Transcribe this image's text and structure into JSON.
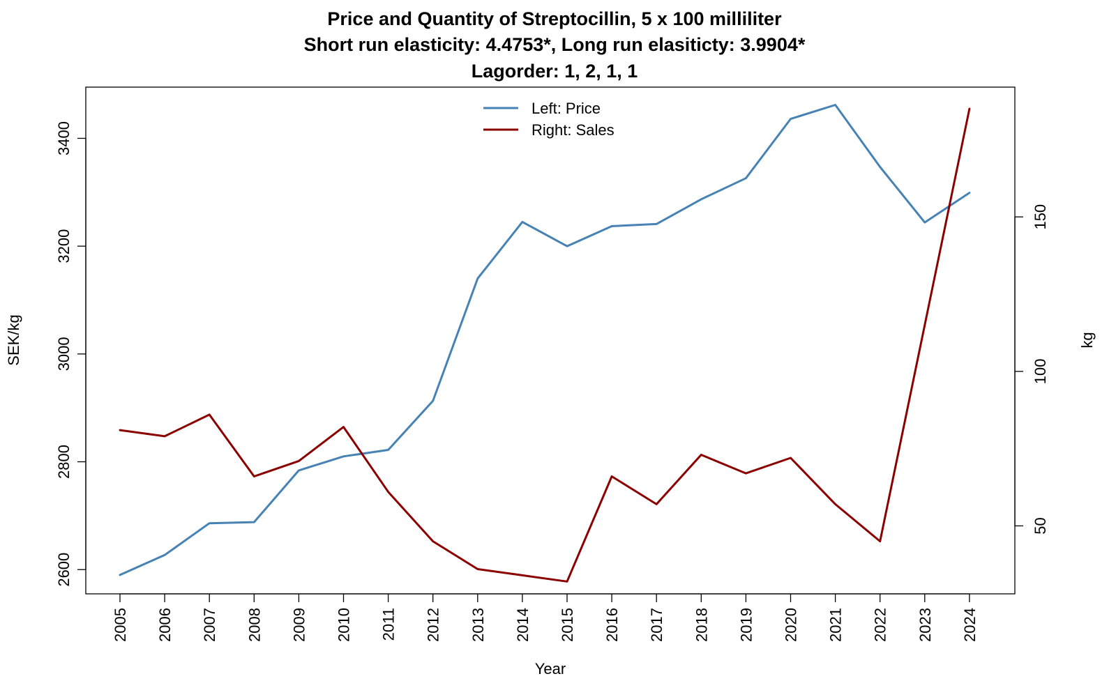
{
  "chart_data": {
    "type": "line",
    "title": "Price and Quantity of Streptocillin, 5 x 100 milliliter",
    "subtitle": "Short run elasticity: 4.4753*,   Long run elasiticty: 3.9904*",
    "subtitle2": "Lagorder: 1, 2, 1, 1",
    "xlabel": "Year",
    "ylabel_left": "SEK/kg",
    "ylabel_right": "kg",
    "x": [
      "2005",
      "2006",
      "2007",
      "2008",
      "2009",
      "2010",
      "2011",
      "2012",
      "2013",
      "2014",
      "2015",
      "2016",
      "2017",
      "2018",
      "2019",
      "2020",
      "2021",
      "2022",
      "2023",
      "2024"
    ],
    "ylim_left": [
      2555,
      3495
    ],
    "ylim_right": [
      28,
      192
    ],
    "yticks_left": [
      2600,
      2800,
      3000,
      3200,
      3400
    ],
    "yticks_right": [
      50,
      100,
      150
    ],
    "legend_position": "top",
    "grid": false,
    "series": [
      {
        "name": "Left: Price",
        "axis": "left",
        "color": "#4682B4",
        "values": [
          2590,
          2627,
          2686,
          2688,
          2784,
          2810,
          2822,
          2913,
          3140,
          3245,
          3200,
          3237,
          3241,
          3287,
          3326,
          3436,
          3462,
          3347,
          3244,
          3299
        ]
      },
      {
        "name": "Right: Sales",
        "axis": "right",
        "color": "#8B0000",
        "values": [
          81,
          79,
          86,
          66,
          71,
          82,
          61,
          45,
          36,
          34,
          32,
          66,
          57,
          73,
          67,
          72,
          57,
          45,
          115,
          185
        ]
      }
    ]
  }
}
